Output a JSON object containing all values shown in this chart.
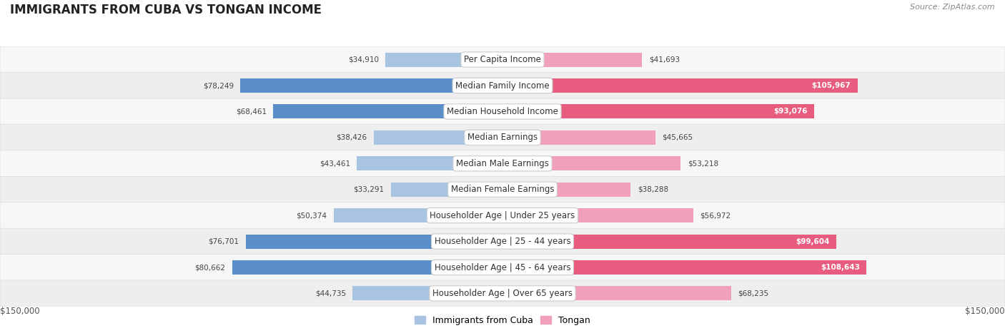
{
  "title": "IMMIGRANTS FROM CUBA VS TONGAN INCOME",
  "source": "Source: ZipAtlas.com",
  "categories": [
    "Per Capita Income",
    "Median Family Income",
    "Median Household Income",
    "Median Earnings",
    "Median Male Earnings",
    "Median Female Earnings",
    "Householder Age | Under 25 years",
    "Householder Age | 25 - 44 years",
    "Householder Age | 45 - 64 years",
    "Householder Age | Over 65 years"
  ],
  "cuba_values": [
    34910,
    78249,
    68461,
    38426,
    43461,
    33291,
    50374,
    76701,
    80662,
    44735
  ],
  "tongan_values": [
    41693,
    105967,
    93076,
    45665,
    53218,
    38288,
    56972,
    99604,
    108643,
    68235
  ],
  "cuba_labels": [
    "$34,910",
    "$78,249",
    "$68,461",
    "$38,426",
    "$43,461",
    "$33,291",
    "$50,374",
    "$76,701",
    "$80,662",
    "$44,735"
  ],
  "tongan_labels": [
    "$41,693",
    "$105,967",
    "$93,076",
    "$45,665",
    "$53,218",
    "$38,288",
    "$56,972",
    "$99,604",
    "$108,643",
    "$68,235"
  ],
  "cuba_color_dark": "#5b8dc8",
  "cuba_color_light": "#a8c4e0",
  "tongan_color_dark": "#e85c80",
  "tongan_color_light": "#f0a0bb",
  "max_value": 150000,
  "row_colors": [
    "#f7f7f7",
    "#eeeeee"
  ],
  "background_white": "#ffffff",
  "legend_cuba": "Immigrants from Cuba",
  "legend_tongan": "Tongan",
  "axis_label_left": "$150,000",
  "axis_label_right": "$150,000",
  "cuba_dark_threshold": 60000,
  "tongan_dark_threshold": 88000,
  "tongan_white_label_threshold": 88000
}
